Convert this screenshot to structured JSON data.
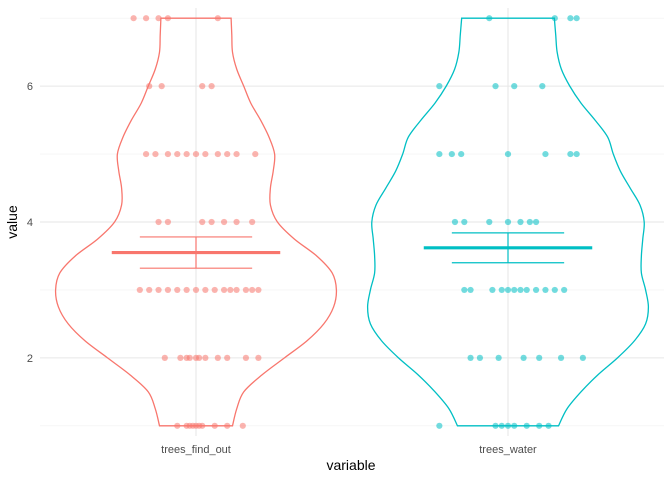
{
  "chart_data": {
    "type": "violin",
    "xlabel": "variable",
    "ylabel": "value",
    "ylim": [
      0.85,
      7.15
    ],
    "yticks": [
      2,
      4,
      6
    ],
    "categories": [
      "trees_find_out",
      "trees_water"
    ],
    "grid": true,
    "legend": "none",
    "series": [
      {
        "category": "trees_find_out",
        "color": "#F8766D",
        "mean": 3.55,
        "se_low": 3.32,
        "se_high": 3.78,
        "violin_profile": [
          [
            1.0,
            0.26
          ],
          [
            1.25,
            0.29
          ],
          [
            1.5,
            0.34
          ],
          [
            1.75,
            0.47
          ],
          [
            2.0,
            0.63
          ],
          [
            2.25,
            0.79
          ],
          [
            2.5,
            0.91
          ],
          [
            2.75,
            0.98
          ],
          [
            3.0,
            1.0
          ],
          [
            3.25,
            0.97
          ],
          [
            3.5,
            0.86
          ],
          [
            3.75,
            0.7
          ],
          [
            4.0,
            0.58
          ],
          [
            4.25,
            0.53
          ],
          [
            4.5,
            0.53
          ],
          [
            4.75,
            0.55
          ],
          [
            5.0,
            0.56
          ],
          [
            5.25,
            0.52
          ],
          [
            5.5,
            0.46
          ],
          [
            5.75,
            0.39
          ],
          [
            6.0,
            0.34
          ],
          [
            6.25,
            0.29
          ],
          [
            6.5,
            0.26
          ],
          [
            6.75,
            0.255
          ],
          [
            7.0,
            0.25
          ]
        ],
        "points": [
          {
            "v": 1,
            "j": [
              -0.06,
              -0.03,
              -0.02,
              -0.01,
              0.0,
              0.01,
              0.02,
              0.06,
              0.1,
              0.15
            ]
          },
          {
            "v": 2,
            "j": [
              -0.1,
              -0.05,
              -0.03,
              -0.02,
              0.0,
              0.01,
              0.03,
              0.07,
              0.1,
              0.16,
              0.2
            ]
          },
          {
            "v": 3,
            "j": [
              -0.18,
              -0.15,
              -0.12,
              -0.09,
              -0.06,
              -0.03,
              0.0,
              0.03,
              0.06,
              0.09,
              0.11,
              0.13,
              0.16,
              0.18,
              0.2
            ]
          },
          {
            "v": 4,
            "j": [
              -0.12,
              -0.09,
              0.02,
              0.05,
              0.09,
              0.13,
              0.18
            ]
          },
          {
            "v": 5,
            "j": [
              -0.16,
              -0.13,
              -0.09,
              -0.06,
              -0.03,
              0.0,
              0.03,
              0.07,
              0.1,
              0.13,
              0.19
            ]
          },
          {
            "v": 6,
            "j": [
              -0.15,
              -0.11,
              0.02,
              0.05
            ]
          },
          {
            "v": 7,
            "j": [
              -0.2,
              -0.16,
              -0.12,
              -0.09,
              0.07
            ]
          }
        ]
      },
      {
        "category": "trees_water",
        "color": "#00BFC4",
        "mean": 3.62,
        "se_low": 3.4,
        "se_high": 3.84,
        "violin_profile": [
          [
            1.0,
            0.36
          ],
          [
            1.25,
            0.42
          ],
          [
            1.5,
            0.52
          ],
          [
            1.75,
            0.64
          ],
          [
            2.0,
            0.78
          ],
          [
            2.25,
            0.9
          ],
          [
            2.5,
            0.98
          ],
          [
            2.75,
            1.0
          ],
          [
            3.0,
            0.98
          ],
          [
            3.25,
            0.95
          ],
          [
            3.5,
            0.95
          ],
          [
            3.75,
            0.96
          ],
          [
            4.0,
            0.97
          ],
          [
            4.25,
            0.94
          ],
          [
            4.5,
            0.87
          ],
          [
            4.75,
            0.8
          ],
          [
            5.0,
            0.75
          ],
          [
            5.25,
            0.71
          ],
          [
            5.5,
            0.62
          ],
          [
            5.75,
            0.52
          ],
          [
            6.0,
            0.44
          ],
          [
            6.25,
            0.38
          ],
          [
            6.5,
            0.35
          ],
          [
            6.75,
            0.34
          ],
          [
            7.0,
            0.33
          ]
        ],
        "points": [
          {
            "v": 1,
            "j": [
              -0.22,
              -0.04,
              -0.02,
              0.0,
              0.02,
              0.06,
              0.1,
              0.13
            ]
          },
          {
            "v": 2,
            "j": [
              -0.12,
              -0.09,
              -0.03,
              0.05,
              0.1,
              0.17,
              0.24
            ]
          },
          {
            "v": 3,
            "j": [
              -0.14,
              -0.12,
              -0.05,
              -0.02,
              0.0,
              0.02,
              0.04,
              0.06,
              0.09,
              0.12,
              0.15,
              0.18
            ]
          },
          {
            "v": 4,
            "j": [
              -0.17,
              -0.14,
              -0.06,
              0.0,
              0.04,
              0.07,
              0.09
            ]
          },
          {
            "v": 5,
            "j": [
              -0.22,
              -0.18,
              -0.15,
              0.0,
              0.12,
              0.2,
              0.22
            ]
          },
          {
            "v": 6,
            "j": [
              -0.22,
              -0.04,
              0.02,
              0.11
            ]
          },
          {
            "v": 7,
            "j": [
              -0.06,
              0.15,
              0.2,
              0.22
            ]
          }
        ]
      }
    ]
  }
}
